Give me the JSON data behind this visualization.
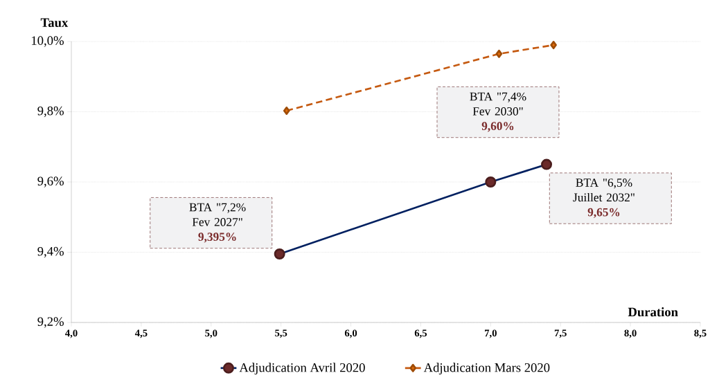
{
  "chart_data": {
    "type": "line",
    "xlabel": "Duration",
    "ylabel": "Taux",
    "xlim": [
      4.0,
      8.5
    ],
    "ylim": [
      9.2,
      10.0
    ],
    "xticks": [
      {
        "value": 4.0,
        "label": "4,0"
      },
      {
        "value": 4.5,
        "label": "4,5"
      },
      {
        "value": 5.0,
        "label": "5,0"
      },
      {
        "value": 5.5,
        "label": "5,5"
      },
      {
        "value": 6.0,
        "label": "6,0"
      },
      {
        "value": 6.5,
        "label": "6,5"
      },
      {
        "value": 7.0,
        "label": "7,0"
      },
      {
        "value": 7.5,
        "label": "7,5"
      },
      {
        "value": 8.0,
        "label": "8,0"
      },
      {
        "value": 8.5,
        "label": "8,5"
      }
    ],
    "yticks": [
      {
        "value": 9.2,
        "label": "9,2%"
      },
      {
        "value": 9.4,
        "label": "9,4%"
      },
      {
        "value": 9.6,
        "label": "9,6%"
      },
      {
        "value": 9.8,
        "label": "9,8%"
      },
      {
        "value": 10.0,
        "label": "10,0%"
      }
    ],
    "grid": "y",
    "legend": "bottom",
    "series": [
      {
        "name": "Adjudication Avril 2020",
        "color": "#002060",
        "colors": [
          "#6b2a2a",
          "#6b2a2a",
          "#6b2a2a"
        ],
        "marker": "circle",
        "line_style": "solid",
        "x": [
          5.49,
          7.0,
          7.4
        ],
        "values": [
          9.395,
          9.6,
          9.65
        ]
      },
      {
        "name": "Adjudication Mars 2020",
        "color": "#c55a11",
        "colors": [
          "#e36c09",
          "#e36c09",
          "#e36c09"
        ],
        "marker": "diamond",
        "line_style": "dashed",
        "x": [
          5.54,
          7.06,
          7.45
        ],
        "values": [
          9.803,
          9.965,
          9.99
        ]
      }
    ],
    "annotations": [
      "BTA \"7,2% Fev 2027\"",
      "**9,395%**",
      "BTA \"7,4% Fev 2030\"",
      "**9,60%**",
      "BTA \"6,5% Juillet 2032\"",
      "**9,65%**"
    ]
  }
}
